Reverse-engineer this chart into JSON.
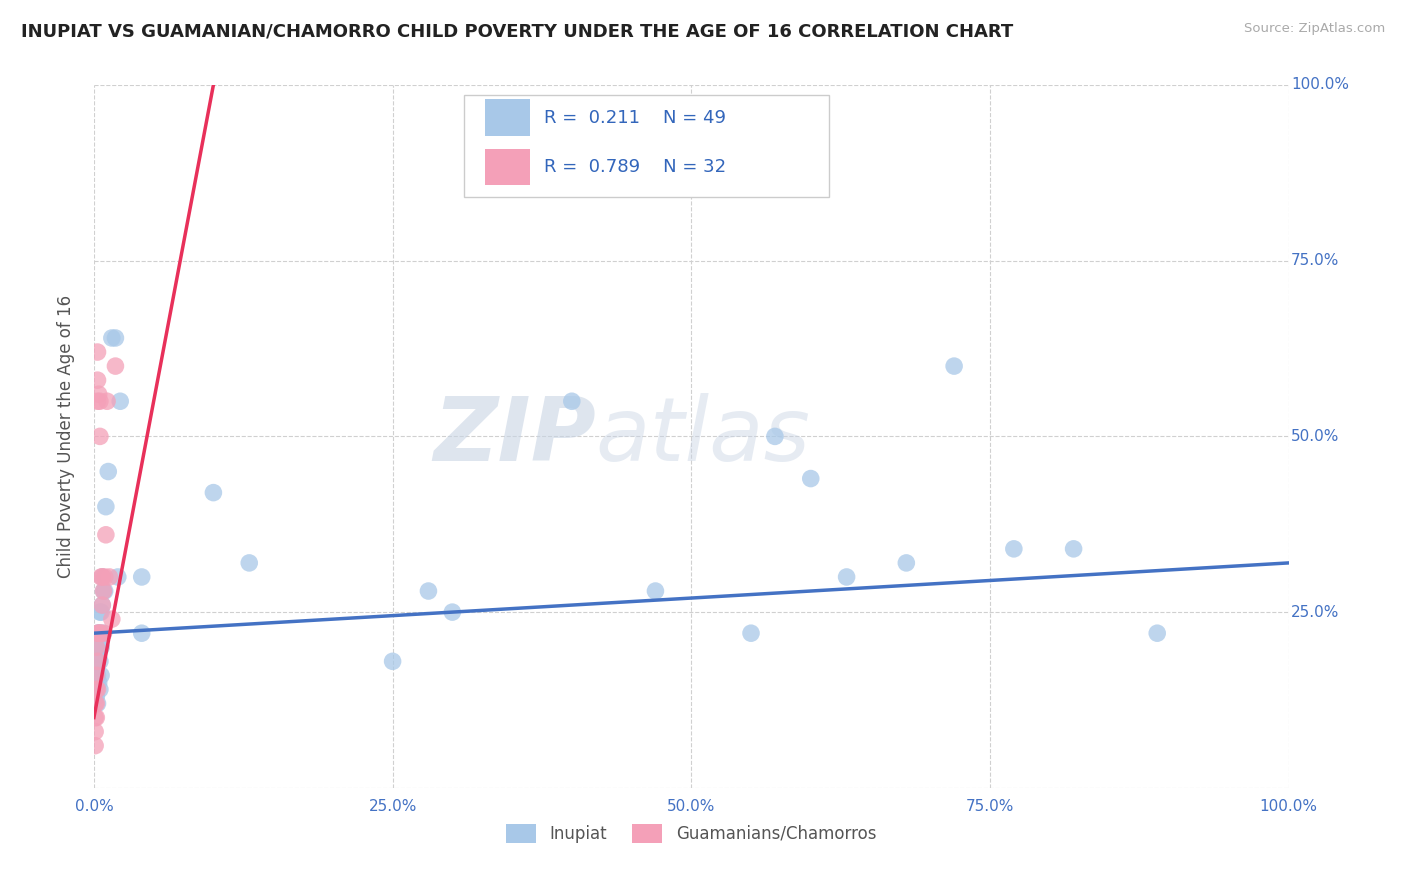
{
  "title": "INUPIAT VS GUAMANIAN/CHAMORRO CHILD POVERTY UNDER THE AGE OF 16 CORRELATION CHART",
  "source": "Source: ZipAtlas.com",
  "ylabel": "Child Poverty Under the Age of 16",
  "xlim": [
    0.0,
    1.0
  ],
  "ylim": [
    0.0,
    1.0
  ],
  "xticks": [
    0.0,
    0.25,
    0.5,
    0.75,
    1.0
  ],
  "xticklabels": [
    "0.0%",
    "25.0%",
    "50.0%",
    "75.0%",
    "100.0%"
  ],
  "ytick_values": [
    0.25,
    0.5,
    0.75,
    1.0
  ],
  "ytick_labels": [
    "25.0%",
    "50.0%",
    "75.0%",
    "100.0%"
  ],
  "inupiat_R": 0.211,
  "inupiat_N": 49,
  "guam_R": 0.789,
  "guam_N": 32,
  "inupiat_color": "#a8c8e8",
  "guam_color": "#f4a0b8",
  "inupiat_line_color": "#4472c4",
  "guam_line_color": "#e8305a",
  "watermark_zip": "ZIP",
  "watermark_atlas": "atlas",
  "legend_label_1": "Inupiat",
  "legend_label_2": "Guamanians/Chamorros",
  "inupiat_x": [
    0.001,
    0.001,
    0.001,
    0.002,
    0.002,
    0.002,
    0.003,
    0.003,
    0.003,
    0.003,
    0.004,
    0.004,
    0.004,
    0.005,
    0.005,
    0.005,
    0.005,
    0.006,
    0.006,
    0.006,
    0.007,
    0.007,
    0.008,
    0.008,
    0.009,
    0.01,
    0.012,
    0.015,
    0.018,
    0.02,
    0.022,
    0.04,
    0.04,
    0.1,
    0.13,
    0.25,
    0.28,
    0.3,
    0.4,
    0.47,
    0.55,
    0.57,
    0.6,
    0.63,
    0.68,
    0.72,
    0.77,
    0.82,
    0.89
  ],
  "inupiat_y": [
    0.2,
    0.17,
    0.14,
    0.2,
    0.17,
    0.13,
    0.22,
    0.19,
    0.16,
    0.12,
    0.22,
    0.2,
    0.15,
    0.25,
    0.22,
    0.18,
    0.14,
    0.25,
    0.2,
    0.16,
    0.3,
    0.26,
    0.28,
    0.22,
    0.28,
    0.4,
    0.45,
    0.64,
    0.64,
    0.3,
    0.55,
    0.3,
    0.22,
    0.42,
    0.32,
    0.18,
    0.28,
    0.25,
    0.55,
    0.28,
    0.22,
    0.5,
    0.44,
    0.3,
    0.32,
    0.6,
    0.34,
    0.34,
    0.22
  ],
  "guam_x": [
    0.001,
    0.001,
    0.001,
    0.001,
    0.002,
    0.002,
    0.002,
    0.002,
    0.002,
    0.003,
    0.003,
    0.003,
    0.003,
    0.003,
    0.003,
    0.004,
    0.004,
    0.005,
    0.005,
    0.005,
    0.006,
    0.006,
    0.007,
    0.007,
    0.008,
    0.008,
    0.009,
    0.01,
    0.011,
    0.013,
    0.015,
    0.018
  ],
  "guam_y": [
    0.06,
    0.08,
    0.1,
    0.12,
    0.1,
    0.12,
    0.14,
    0.16,
    0.2,
    0.14,
    0.18,
    0.22,
    0.55,
    0.58,
    0.62,
    0.22,
    0.56,
    0.22,
    0.5,
    0.55,
    0.3,
    0.22,
    0.26,
    0.3,
    0.22,
    0.28,
    0.3,
    0.36,
    0.55,
    0.3,
    0.24,
    0.6
  ],
  "inupiat_line_x": [
    0.0,
    1.0
  ],
  "inupiat_line_y": [
    0.22,
    0.32
  ],
  "guam_line_x": [
    0.0,
    0.1
  ],
  "guam_line_y": [
    0.1,
    1.0
  ]
}
